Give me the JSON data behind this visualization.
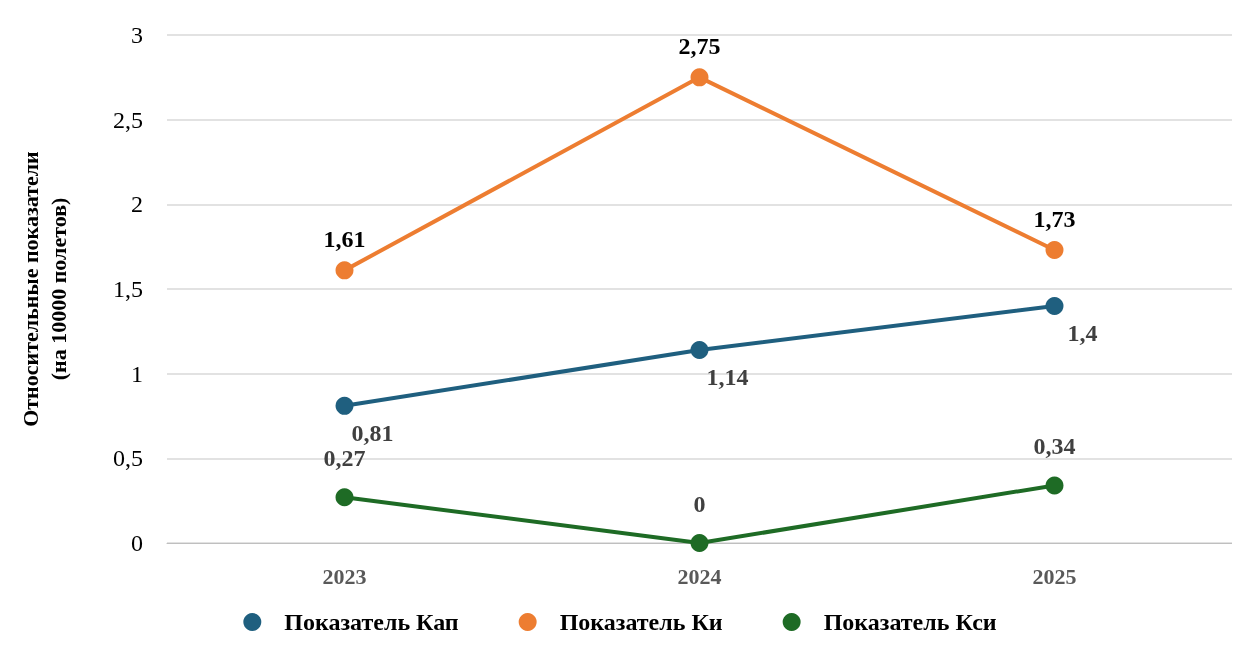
{
  "chart_data": {
    "type": "line",
    "ylabel": "Относительные показатели\n(на 10000 полетов)",
    "categories": [
      "2023",
      "2024",
      "2025"
    ],
    "series": [
      {
        "name": "Показатель Кап",
        "color": "#1f5f7f",
        "values": [
          0.81,
          1.14,
          1.4
        ],
        "value_labels": [
          "0,81",
          "1,14",
          "1,4"
        ]
      },
      {
        "name": "Показатель Ки",
        "color": "#ed7d31",
        "values": [
          1.61,
          2.75,
          1.73
        ],
        "value_labels": [
          "1,61",
          "2,75",
          "1,73"
        ]
      },
      {
        "name": "Показатель Кси",
        "color": "#1e6b25",
        "values": [
          0.27,
          0,
          0.34
        ],
        "value_labels": [
          "0,27",
          "0",
          "0,34"
        ]
      }
    ],
    "ylim": [
      0,
      3
    ],
    "yticks": [
      0,
      {
        "value": 0.5,
        "label": "0,5"
      },
      1,
      {
        "value": 1.5,
        "label": "1,5"
      },
      2,
      {
        "value": 2.5,
        "label": "2,5"
      },
      3
    ],
    "grid": "y",
    "legend": "bottom",
    "marker": "circle",
    "line_style": "solid"
  }
}
